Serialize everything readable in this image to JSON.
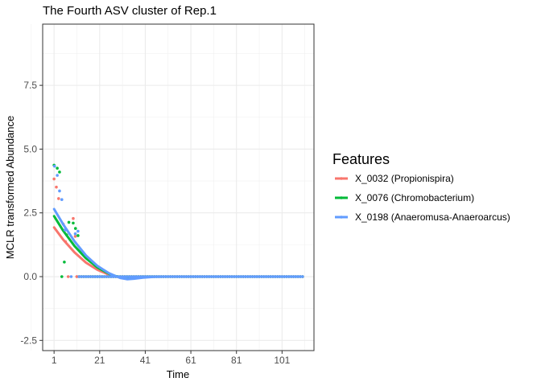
{
  "chart_data": {
    "type": "scatter",
    "title": "The Fourth ASV cluster of Rep.1",
    "xlabel": "Time",
    "ylabel": "MCLR transformed Abundance",
    "xlim": [
      -4,
      115
    ],
    "ylim": [
      -2.9,
      9.9
    ],
    "x_ticks": [
      1,
      21,
      41,
      61,
      81,
      101
    ],
    "y_ticks": [
      -2.5,
      0.0,
      2.5,
      5.0,
      7.5
    ],
    "y_tick_labels": [
      "-2.5",
      "0.0",
      "2.5",
      "5.0",
      "7.5"
    ],
    "grid": true,
    "legend": {
      "title": "Features",
      "position": "right"
    },
    "smooth_x": [
      1,
      5,
      10,
      15,
      20,
      25,
      28,
      30,
      33,
      36,
      40,
      45,
      50,
      110
    ],
    "series": [
      {
        "name": "X_0032 (Propionispira)",
        "color": "#F8766D",
        "points": [
          [
            1,
            3.83
          ],
          [
            2,
            3.51
          ],
          [
            3,
            3.06
          ],
          [
            5,
            2.06
          ],
          [
            6,
            1.37
          ],
          [
            7.2,
            0
          ],
          [
            9.4,
            2.28
          ],
          [
            10.3,
            1.58
          ],
          [
            11,
            0
          ]
        ],
        "zeros_from_time": 11,
        "zeros_to_time": 110,
        "smooth": [
          1.93,
          1.45,
          0.95,
          0.55,
          0.27,
          0.08,
          0,
          -0.02,
          -0.03,
          -0.02,
          0,
          0,
          0,
          0
        ]
      },
      {
        "name": "X_0076 (Chromobacterium)",
        "color": "#00BA38",
        "points": [
          [
            1,
            4.37
          ],
          [
            2.4,
            4.25
          ],
          [
            3.4,
            4.1
          ],
          [
            4.4,
            0
          ],
          [
            5.5,
            0.57
          ],
          [
            6.5,
            1.64
          ],
          [
            7.5,
            2.13
          ],
          [
            9.4,
            2.1
          ],
          [
            10.4,
            1.89
          ],
          [
            11.5,
            1.61
          ]
        ],
        "zeros_from_time": 12,
        "zeros_to_time": 110,
        "smooth": [
          2.37,
          1.8,
          1.2,
          0.72,
          0.36,
          0.12,
          0.02,
          -0.02,
          -0.04,
          -0.03,
          -0.01,
          0,
          0,
          0
        ]
      },
      {
        "name": "X_0198 (Anaeromusa-Anaeroarcus)",
        "color": "#619CFF",
        "points": [
          [
            1.2,
            4.33
          ],
          [
            2.4,
            3.97
          ],
          [
            3.4,
            3.36
          ],
          [
            4.4,
            3.02
          ],
          [
            5.8,
            1.83
          ],
          [
            8.5,
            0
          ],
          [
            10.3,
            1.68
          ],
          [
            11.5,
            1.78
          ]
        ],
        "zeros_from_time": 12,
        "zeros_to_time": 110,
        "smooth": [
          2.65,
          2.05,
          1.38,
          0.83,
          0.42,
          0.14,
          0.02,
          -0.05,
          -0.1,
          -0.08,
          -0.04,
          -0.01,
          0,
          0
        ]
      }
    ]
  }
}
